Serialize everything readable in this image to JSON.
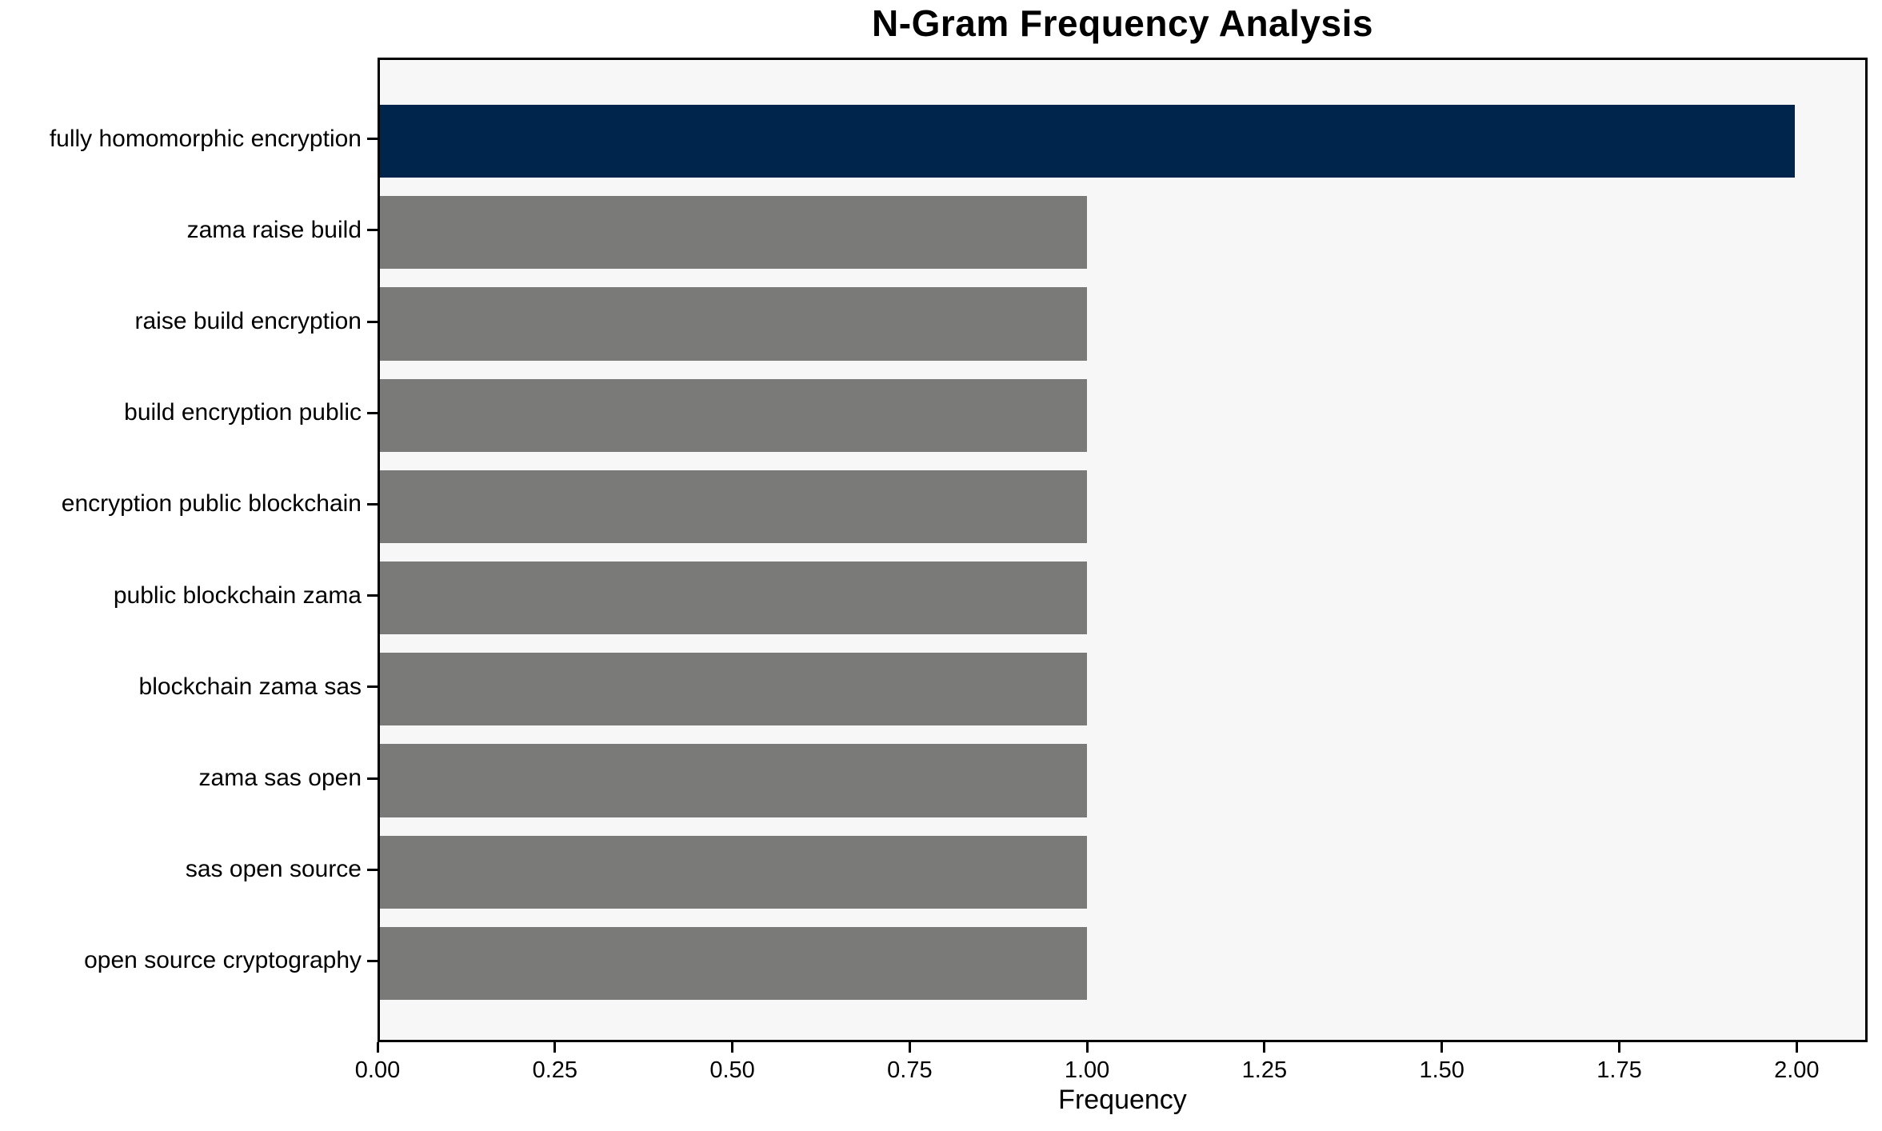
{
  "chart_data": {
    "type": "bar",
    "orientation": "horizontal",
    "title": "N-Gram Frequency Analysis",
    "xlabel": "Frequency",
    "ylabel": "",
    "categories": [
      "fully homomorphic encryption",
      "zama raise build",
      "raise build encryption",
      "build encryption public",
      "encryption public blockchain",
      "public blockchain zama",
      "blockchain zama sas",
      "zama sas open",
      "sas open source",
      "open source cryptography"
    ],
    "values": [
      2,
      1,
      1,
      1,
      1,
      1,
      1,
      1,
      1,
      1
    ],
    "bar_colors": [
      "#00254d",
      "#7a7a78",
      "#7a7a78",
      "#7a7a78",
      "#7a7a78",
      "#7a7a78",
      "#7a7a78",
      "#7a7a78",
      "#7a7a78",
      "#7a7a78"
    ],
    "xlim": [
      0,
      2.1
    ],
    "xticks": [
      0,
      0.25,
      0.5,
      0.75,
      1.0,
      1.25,
      1.5,
      1.75,
      2.0
    ],
    "xtick_labels": [
      "0.00",
      "0.25",
      "0.50",
      "0.75",
      "1.00",
      "1.25",
      "1.50",
      "1.75",
      "2.00"
    ],
    "grid": false,
    "legend": null,
    "bar_height_fraction": 0.8,
    "colors": {
      "bar_highlight": "#00254d",
      "bar_default": "#7a7a78",
      "plot_background": "#f7f7f7",
      "figure_background": "#ffffff",
      "spine": "#000000",
      "text": "#000000"
    }
  }
}
